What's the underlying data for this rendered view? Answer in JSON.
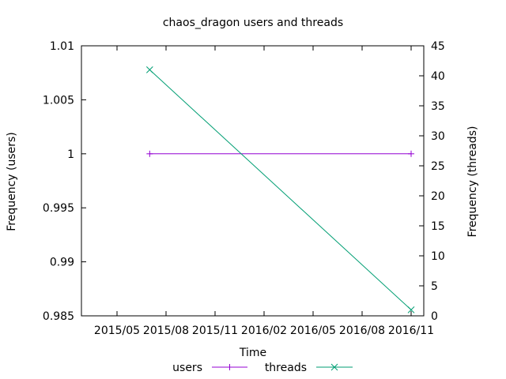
{
  "chart_data": {
    "type": "line",
    "title": "chaos_dragon users and threads",
    "xlabel": "Time",
    "ylabel_left": "Frequency (users)",
    "ylabel_right": "Frequency (threads)",
    "x_ticks": [
      "2015/05",
      "2015/08",
      "2015/11",
      "2016/02",
      "2016/05",
      "2016/08",
      "2016/11"
    ],
    "ylim_left": [
      0.985,
      1.01
    ],
    "y_ticks_left": [
      "0.985",
      "0.99",
      "0.995",
      "1",
      "1.005",
      "1.01"
    ],
    "ylim_right": [
      0,
      45
    ],
    "y_ticks_right": [
      "0",
      "5",
      "10",
      "15",
      "20",
      "25",
      "30",
      "35",
      "40",
      "45"
    ],
    "grid": false,
    "legend_position": "bottom",
    "series": [
      {
        "name": "users",
        "axis": "left",
        "color": "#9400d3",
        "marker": "plus",
        "points": [
          {
            "x": "2015/07",
            "y": 1
          },
          {
            "x": "2016/11",
            "y": 1
          }
        ]
      },
      {
        "name": "threads",
        "axis": "right",
        "color": "#009e73",
        "marker": "cross",
        "points": [
          {
            "x": "2015/07",
            "y": 41
          },
          {
            "x": "2016/11",
            "y": 1
          }
        ]
      }
    ]
  }
}
